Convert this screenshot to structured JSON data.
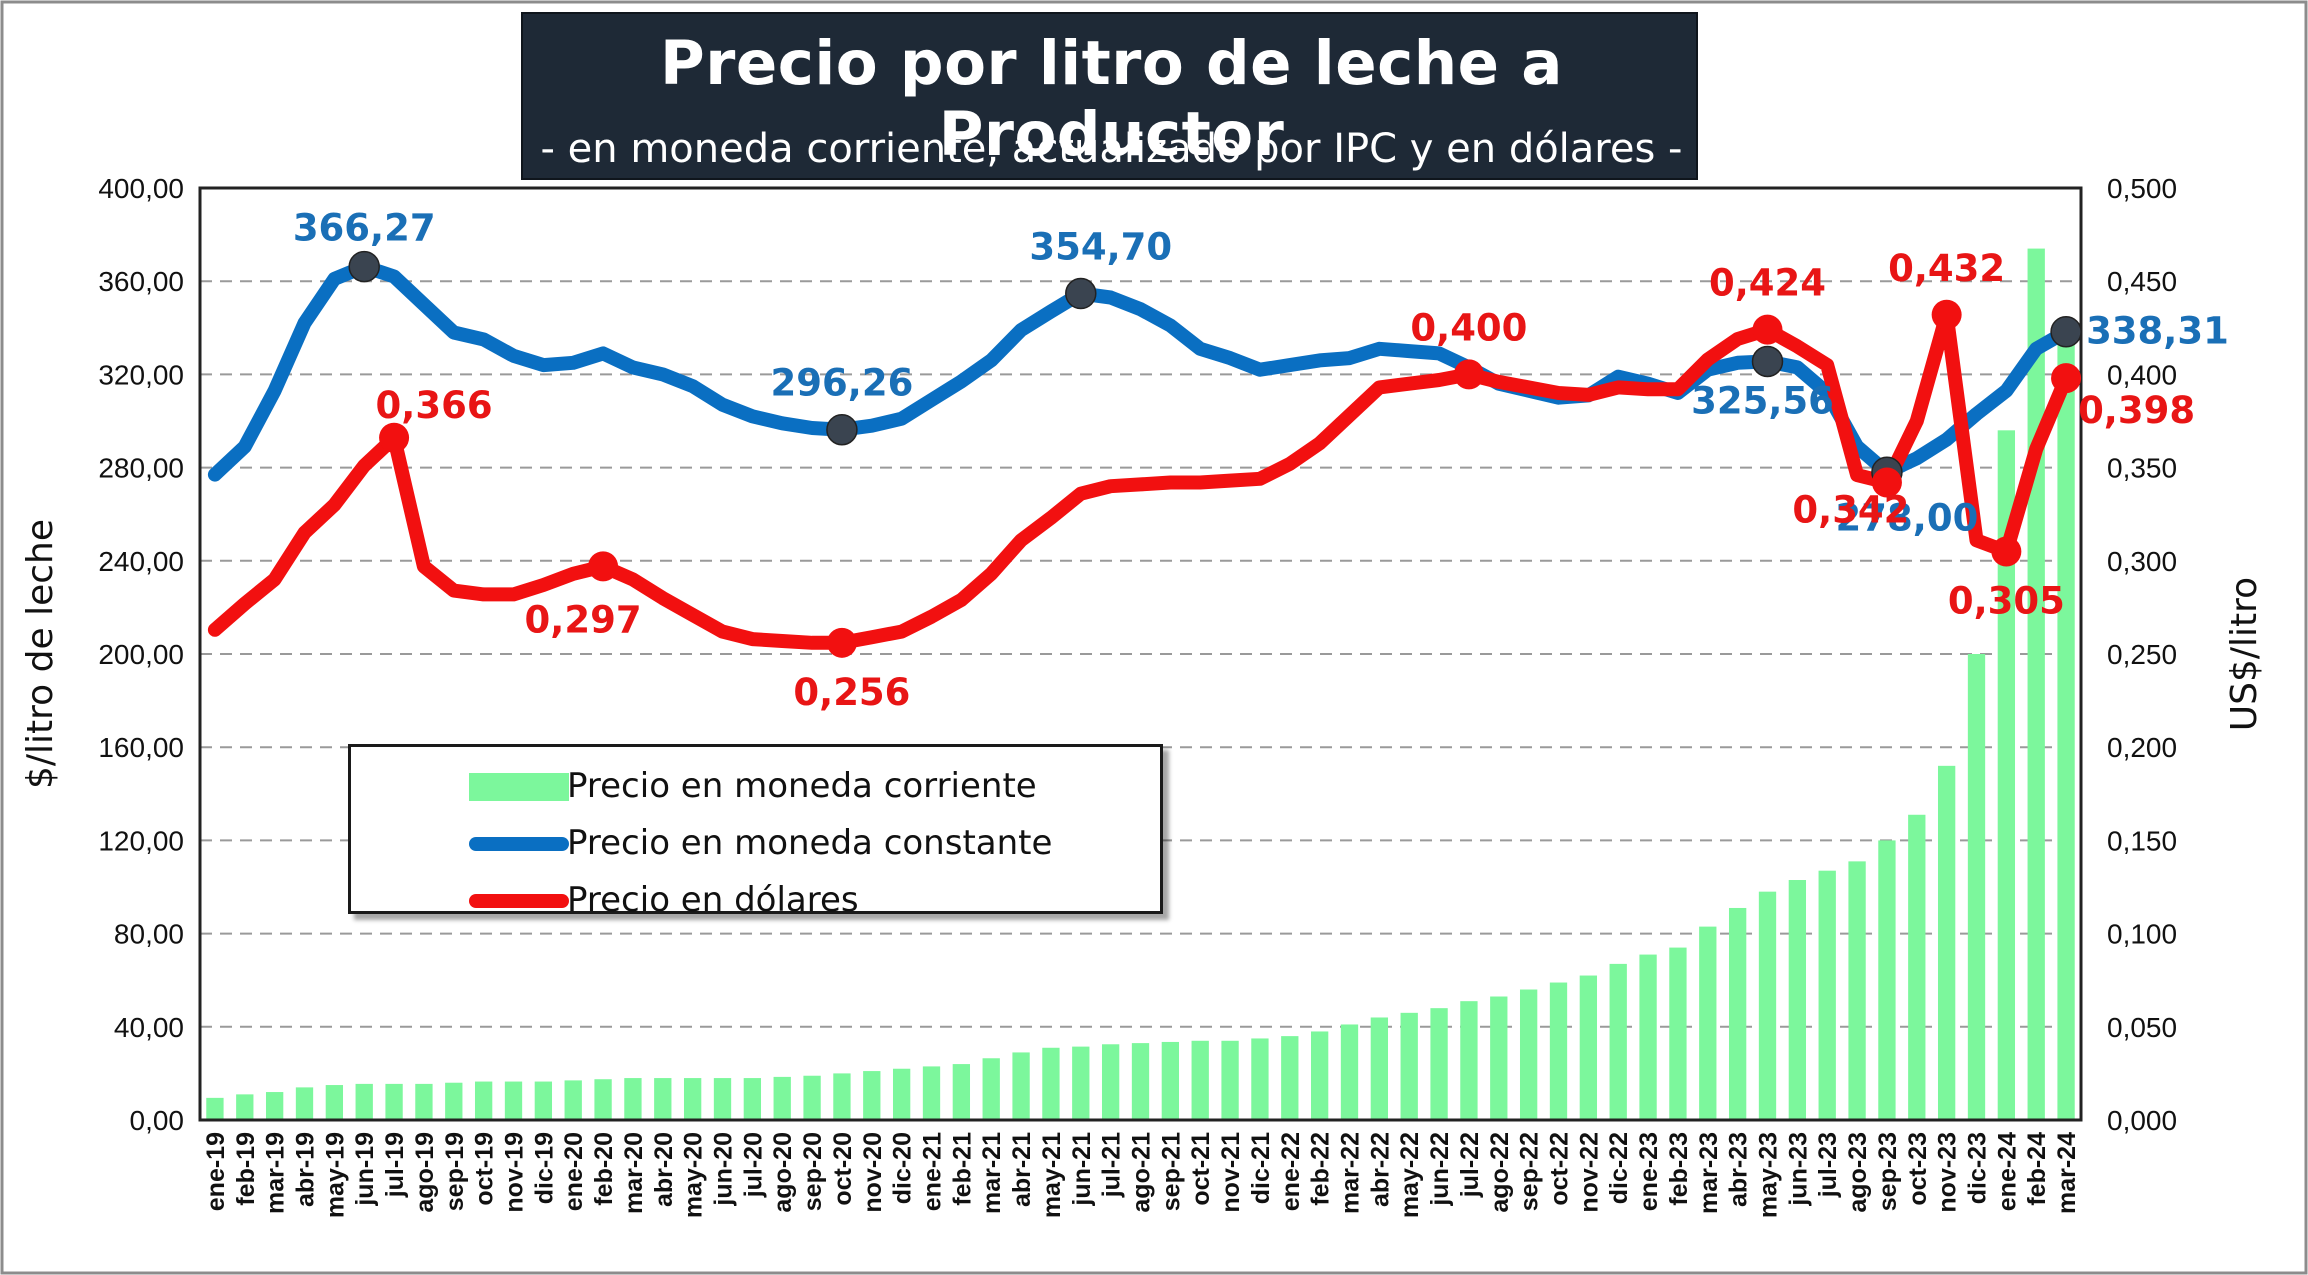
{
  "title": "Precio por litro de leche a Productor",
  "subtitle": "- en moneda corriente, actualizado por IPC y en dólares -",
  "colors": {
    "bars": "#7cf79c",
    "constant": "#0a6fc2",
    "usd": "#f21010",
    "marker": "#3a4450",
    "grid": "#9a9a9a"
  },
  "legend": {
    "current": "Precio en moneda corriente",
    "constant": "Precio en moneda constante",
    "usd": "Precio en dólares"
  },
  "chart_data": {
    "type": "bar",
    "title": "Precio por litro de leche a Productor",
    "subtitle": "- en moneda corriente, actualizado por IPC y en dólares -",
    "ylabel_left": "$/litro de leche",
    "ylabel_right": "US$/litro",
    "ylim_left": [
      0,
      400
    ],
    "ylim_right": [
      0,
      0.5
    ],
    "yticks_left": [
      "0,00",
      "40,00",
      "80,00",
      "120,00",
      "160,00",
      "200,00",
      "240,00",
      "280,00",
      "320,00",
      "360,00",
      "400,00"
    ],
    "yticks_right": [
      "0,000",
      "0,050",
      "0,100",
      "0,150",
      "0,200",
      "0,250",
      "0,300",
      "0,350",
      "0,400",
      "0,450",
      "0,500"
    ],
    "grid": "horizontal dashed",
    "legend_position": "center-left",
    "categories": [
      "ene-19",
      "feb-19",
      "mar-19",
      "abr-19",
      "may-19",
      "jun-19",
      "jul-19",
      "ago-19",
      "sep-19",
      "oct-19",
      "nov-19",
      "dic-19",
      "ene-20",
      "feb-20",
      "mar-20",
      "abr-20",
      "may-20",
      "jun-20",
      "jul-20",
      "ago-20",
      "sep-20",
      "oct-20",
      "nov-20",
      "dic-20",
      "ene-21",
      "feb-21",
      "mar-21",
      "abr-21",
      "may-21",
      "jun-21",
      "jul-21",
      "ago-21",
      "sep-21",
      "oct-21",
      "nov-21",
      "dic-21",
      "ene-22",
      "feb-22",
      "mar-22",
      "abr-22",
      "may-22",
      "jun-22",
      "jul-22",
      "ago-22",
      "sep-22",
      "oct-22",
      "nov-22",
      "dic-22",
      "ene-23",
      "feb-23",
      "mar-23",
      "abr-23",
      "may-23",
      "jun-23",
      "jul-23",
      "ago-23",
      "sep-23",
      "oct-23",
      "nov-23",
      "dic-23",
      "ene-24",
      "feb-24",
      "mar-24"
    ],
    "series": [
      {
        "name": "Precio en moneda corriente",
        "type": "bar",
        "axis": "left",
        "values": [
          9.5,
          11,
          12,
          14,
          15,
          15.5,
          15.5,
          15.5,
          16,
          16.5,
          16.5,
          16.5,
          17,
          17.5,
          18,
          18,
          18,
          18,
          18,
          18.5,
          19,
          20,
          21,
          22,
          23,
          24,
          26.5,
          29,
          31,
          31.5,
          32.5,
          33,
          33.5,
          34,
          34,
          35,
          36,
          38,
          41,
          44,
          46,
          48,
          51,
          53,
          56,
          59,
          62,
          67,
          71,
          74,
          83,
          91,
          98,
          103,
          107,
          111,
          120,
          131,
          152,
          200,
          296,
          374,
          338.31
        ]
      },
      {
        "name": "Precio en moneda constante",
        "type": "line",
        "axis": "left",
        "values": [
          277,
          289,
          313,
          342,
          361,
          366.27,
          362,
          350,
          338,
          335,
          328,
          324,
          325,
          329,
          323,
          320,
          315,
          307,
          302,
          299,
          297,
          296.26,
          298,
          301,
          309,
          317,
          326,
          339,
          347,
          354.7,
          353,
          348,
          341,
          331,
          327,
          322,
          324,
          326,
          327,
          331,
          330,
          329,
          323,
          316,
          313,
          310,
          311,
          319,
          316,
          312,
          322,
          325,
          325.56,
          323,
          312,
          289,
          278,
          284,
          292,
          303,
          313,
          331,
          338.31
        ]
      },
      {
        "name": "Precio en dólares",
        "type": "line",
        "axis": "right",
        "values": [
          0.263,
          0.277,
          0.29,
          0.315,
          0.33,
          0.351,
          0.366,
          0.297,
          0.284,
          0.282,
          0.282,
          0.287,
          0.293,
          0.297,
          0.29,
          0.28,
          0.271,
          0.262,
          0.258,
          0.257,
          0.256,
          0.256,
          0.259,
          0.262,
          0.27,
          0.279,
          0.293,
          0.311,
          0.323,
          0.336,
          0.34,
          0.341,
          0.342,
          0.342,
          0.343,
          0.344,
          0.352,
          0.363,
          0.378,
          0.393,
          0.395,
          0.397,
          0.4,
          0.396,
          0.393,
          0.39,
          0.389,
          0.393,
          0.392,
          0.392,
          0.408,
          0.419,
          0.424,
          0.415,
          0.405,
          0.346,
          0.342,
          0.375,
          0.432,
          0.311,
          0.305,
          0.36,
          0.398
        ]
      }
    ],
    "annotations": [
      {
        "series": "Precio en moneda constante",
        "index": 5,
        "label": "366,27"
      },
      {
        "series": "Precio en moneda constante",
        "index": 21,
        "label": "296,26"
      },
      {
        "series": "Precio en moneda constante",
        "index": 29,
        "label": "354,70"
      },
      {
        "series": "Precio en moneda constante",
        "index": 52,
        "label": "325,56"
      },
      {
        "series": "Precio en moneda constante",
        "index": 56,
        "label": "278,00"
      },
      {
        "series": "Precio en moneda constante",
        "index": 62,
        "label": "338,31"
      },
      {
        "series": "Precio en dólares",
        "index": 6,
        "label": "0,366"
      },
      {
        "series": "Precio en dólares",
        "index": 13,
        "label": "0,297"
      },
      {
        "series": "Precio en dólares",
        "index": 21,
        "label": "0,256"
      },
      {
        "series": "Precio en dólares",
        "index": 42,
        "label": "0,400"
      },
      {
        "series": "Precio en dólares",
        "index": 52,
        "label": "0,424"
      },
      {
        "series": "Precio en dólares",
        "index": 56,
        "label": "0,342"
      },
      {
        "series": "Precio en dólares",
        "index": 58,
        "label": "0,432"
      },
      {
        "series": "Precio en dólares",
        "index": 60,
        "label": "0,305"
      },
      {
        "series": "Precio en dólares",
        "index": 62,
        "label": "0,398"
      }
    ]
  }
}
